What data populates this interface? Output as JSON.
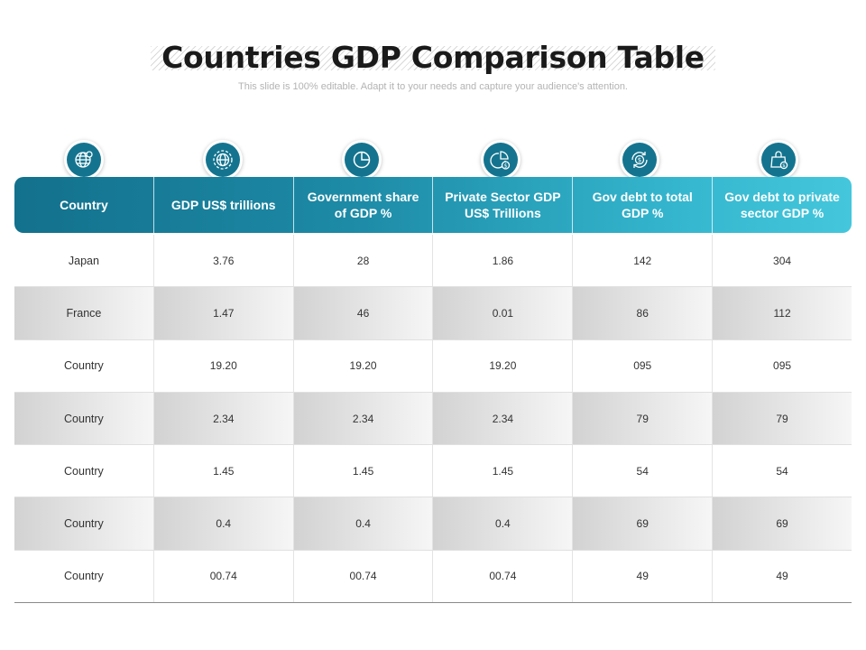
{
  "title": "Countries GDP Comparison Table",
  "subtitle": "This slide is 100% editable. Adapt it to your needs and capture your audience's attention.",
  "icons": [
    "globe-pin-icon",
    "globe-gear-icon",
    "pie-chart-icon",
    "pie-dollar-icon",
    "dollar-cycle-icon",
    "bag-dollar-icon"
  ],
  "columns": [
    "Country",
    "GDP  US$ trillions",
    "Government share of GDP %",
    "Private Sector GDP US$ Trillions",
    "Gov debt to total GDP %",
    "Gov debt to private sector GDP %"
  ],
  "rows": [
    [
      "Japan",
      "3.76",
      "28",
      "1.86",
      "142",
      "304"
    ],
    [
      "France",
      "1.47",
      "46",
      "0.01",
      "86",
      "112"
    ],
    [
      "Country",
      "19.20",
      "19.20",
      "19.20",
      "095",
      "095"
    ],
    [
      "Country",
      "2.34",
      "2.34",
      "2.34",
      "79",
      "79"
    ],
    [
      "Country",
      "1.45",
      "1.45",
      "1.45",
      "54",
      "54"
    ],
    [
      "Country",
      "0.4",
      "0.4",
      "0.4",
      "69",
      "69"
    ],
    [
      "Country",
      "00.74",
      "00.74",
      "00.74",
      "49",
      "49"
    ]
  ],
  "colors": {
    "header_start": "#13718d",
    "header_end": "#44c7dc",
    "icon_fill": "#14748f"
  }
}
